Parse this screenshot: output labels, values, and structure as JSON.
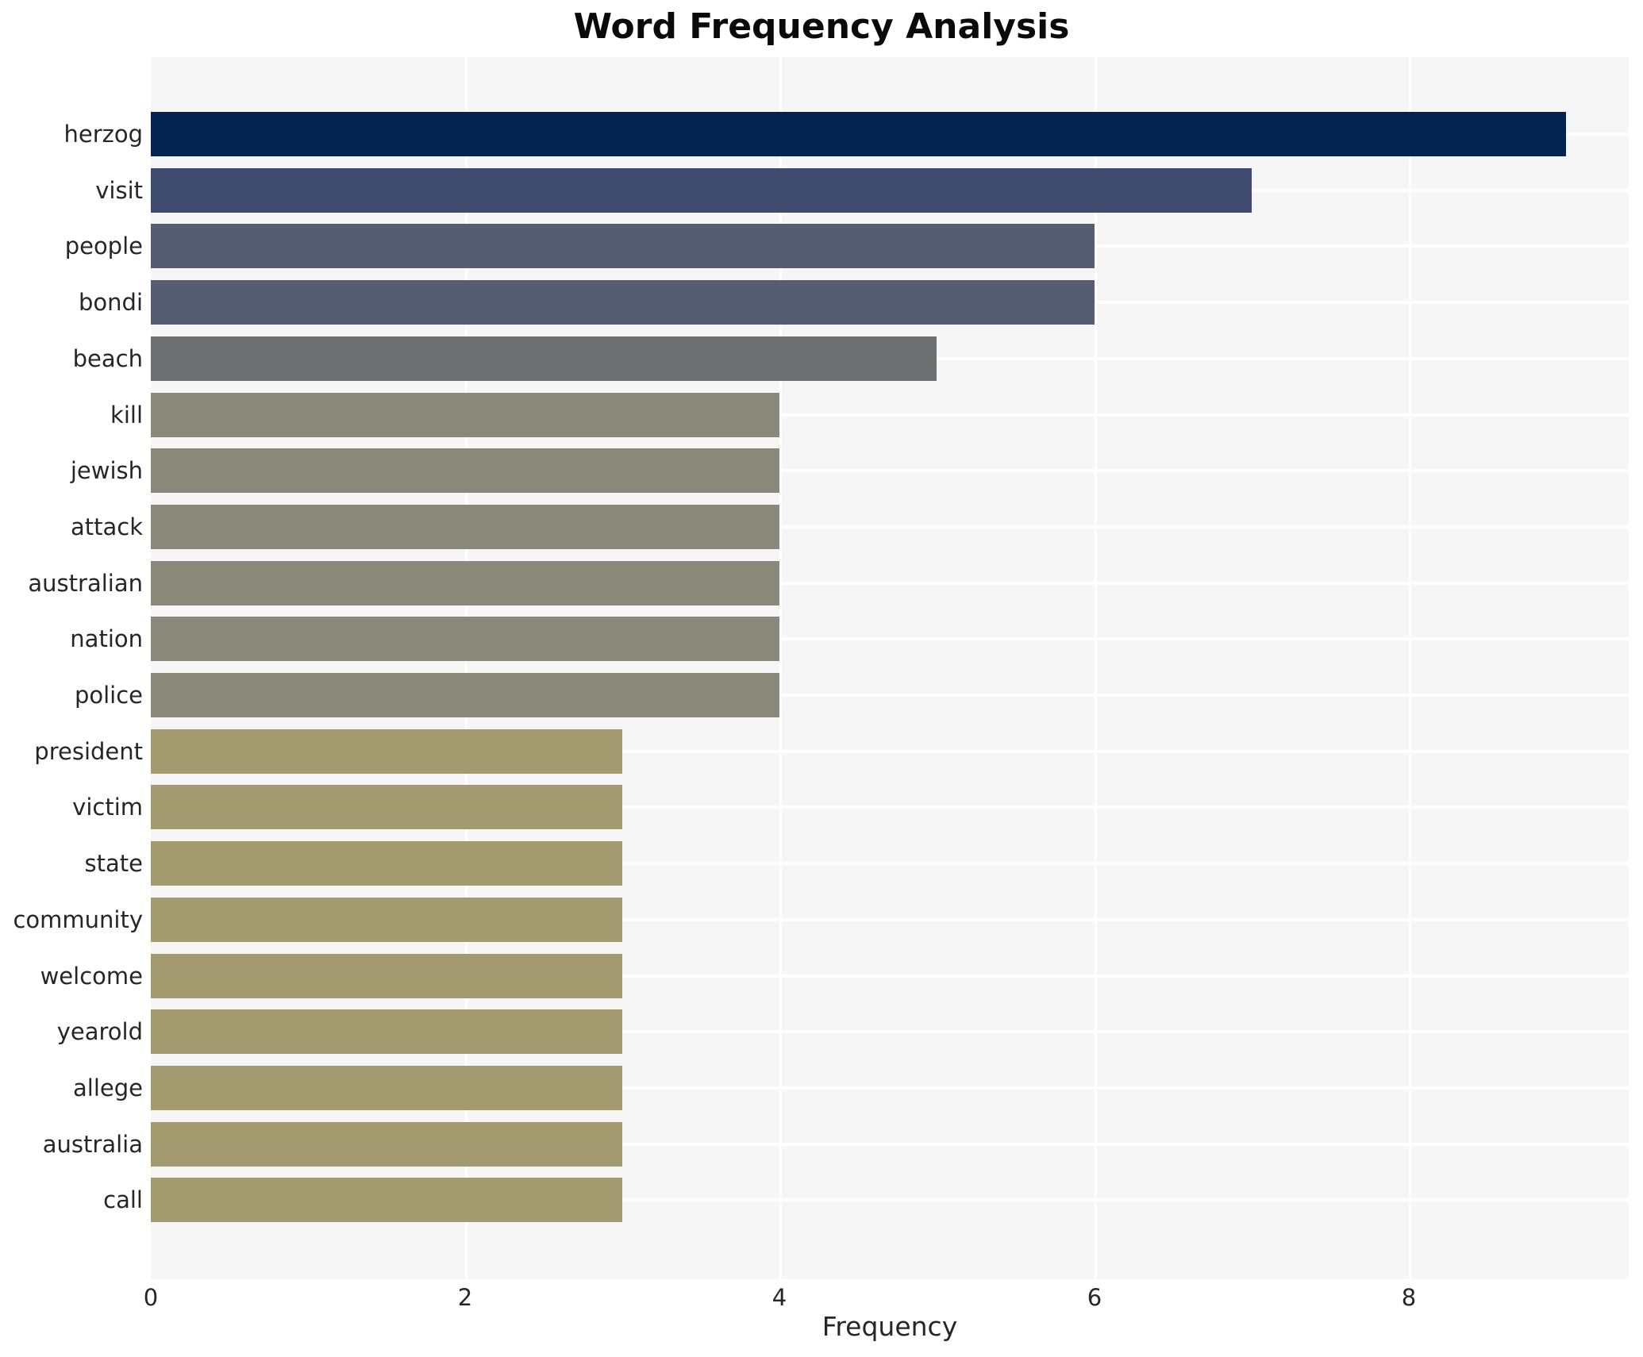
{
  "title": "Word Frequency Analysis",
  "chart_data": {
    "type": "bar",
    "orientation": "horizontal",
    "title": "Word Frequency Analysis",
    "xlabel": "Frequency",
    "ylabel": "",
    "xlim": [
      0,
      9.4
    ],
    "xticks": [
      0,
      2,
      4,
      6,
      8
    ],
    "grid": true,
    "legend": "none",
    "plot_background": "#f6f6f7",
    "gridline_color": "#ffffff",
    "categories": [
      "herzog",
      "visit",
      "people",
      "bondi",
      "beach",
      "kill",
      "jewish",
      "attack",
      "australian",
      "nation",
      "police",
      "president",
      "victim",
      "state",
      "community",
      "welcome",
      "yearold",
      "allege",
      "australia",
      "call"
    ],
    "values": [
      9,
      7,
      6,
      6,
      5,
      4,
      4,
      4,
      4,
      4,
      4,
      3,
      3,
      3,
      3,
      3,
      3,
      3,
      3,
      3
    ],
    "bar_colors": [
      "#032350",
      "#3e4a6e",
      "#565d72",
      "#565d72",
      "#6f7072",
      "#8a8979",
      "#8a8979",
      "#8a8979",
      "#8a8979",
      "#8a8979",
      "#8a8979",
      "#a49a70",
      "#a49a70",
      "#a49a70",
      "#a49a70",
      "#a49a70",
      "#a49a70",
      "#a49a70",
      "#a49a70",
      "#a49a70"
    ]
  }
}
